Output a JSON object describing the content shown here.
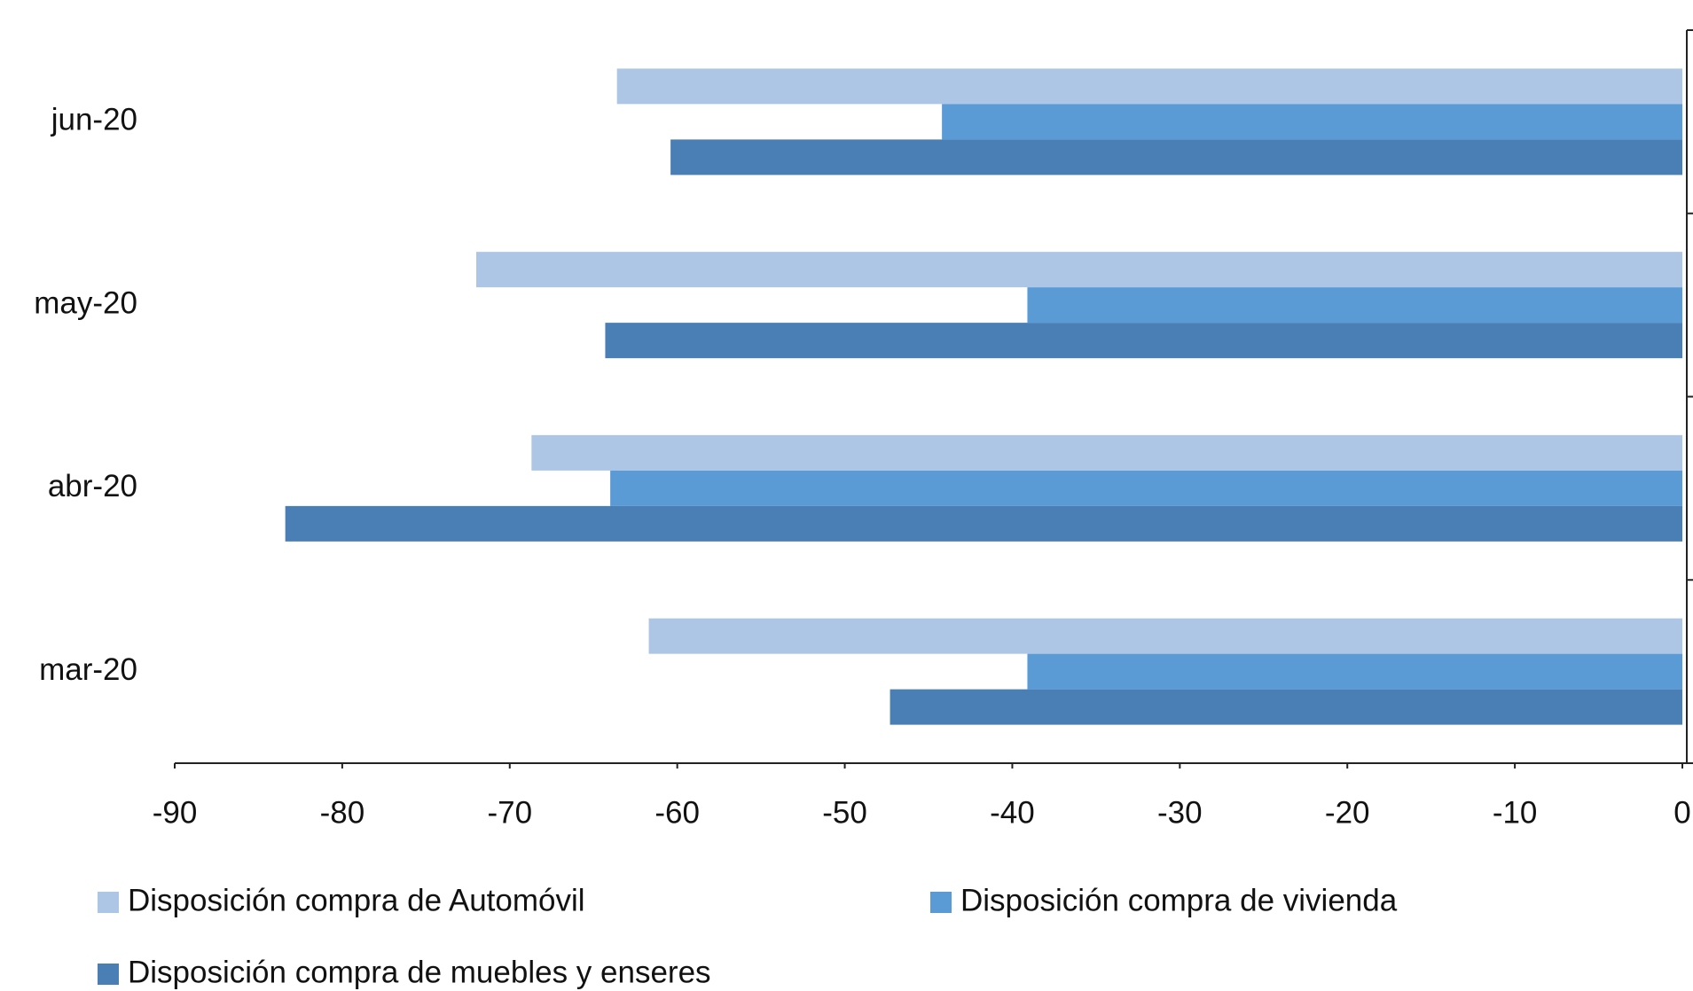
{
  "chart_data": {
    "type": "hbar",
    "categories": [
      "mar-20",
      "abr-20",
      "may-20",
      "jun-20"
    ],
    "series": [
      {
        "name": "Disposición compra de Automóvil",
        "color": "#adc6e5",
        "values": [
          -61.7,
          -68.7,
          -72.0,
          -63.6
        ]
      },
      {
        "name": "Disposición compra de vivienda",
        "color": "#5b9bd5",
        "values": [
          -39.1,
          -64.0,
          -39.1,
          -44.2
        ]
      },
      {
        "name": "Disposición compra de muebles y enseres",
        "color": "#4a7fb5",
        "values": [
          -47.3,
          -83.4,
          -64.3,
          -60.4
        ]
      }
    ],
    "xlim": [
      -90,
      0
    ],
    "xticks": [
      -90,
      -80,
      -70,
      -60,
      -50,
      -40,
      -30,
      -20,
      -10,
      0
    ],
    "legend": "bottom"
  }
}
